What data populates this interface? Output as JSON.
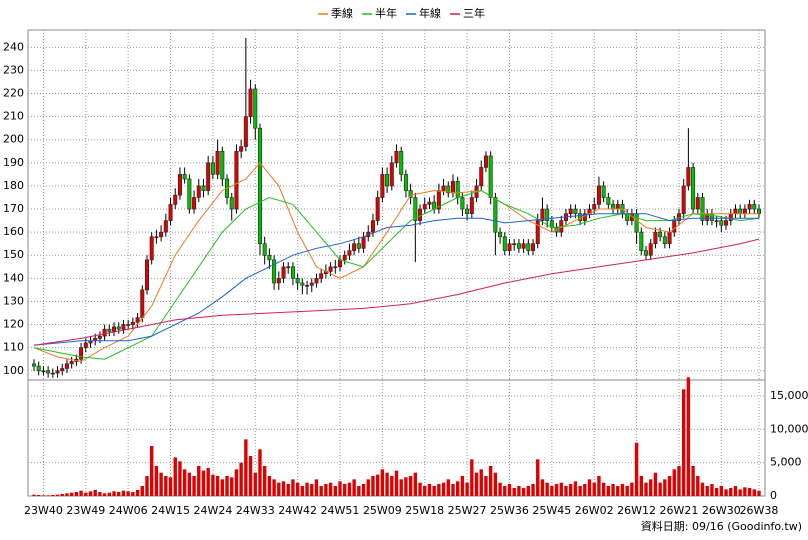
{
  "chart_data": {
    "type": "candlestick",
    "categories": [
      null,
      null,
      "23W40",
      null,
      null,
      null,
      null,
      null,
      null,
      null,
      null,
      "23W49",
      null,
      null,
      null,
      null,
      null,
      null,
      null,
      null,
      "24W06",
      null,
      null,
      null,
      null,
      null,
      null,
      null,
      null,
      "24W15",
      null,
      null,
      null,
      null,
      null,
      null,
      null,
      null,
      "24W24",
      null,
      null,
      null,
      null,
      null,
      null,
      null,
      null,
      "24W33",
      null,
      null,
      null,
      null,
      null,
      null,
      null,
      null,
      "24W42",
      null,
      null,
      null,
      null,
      null,
      null,
      null,
      null,
      "24W51",
      null,
      null,
      null,
      null,
      null,
      null,
      null,
      null,
      "25W09",
      null,
      null,
      null,
      null,
      null,
      null,
      null,
      null,
      "25W18",
      null,
      null,
      null,
      null,
      null,
      null,
      null,
      null,
      "25W27",
      null,
      null,
      null,
      null,
      null,
      null,
      null,
      null,
      "25W36",
      null,
      null,
      null,
      null,
      null,
      null,
      null,
      null,
      "25W45",
      null,
      null,
      null,
      null,
      null,
      null,
      null,
      null,
      "26W02",
      null,
      null,
      null,
      null,
      null,
      null,
      null,
      null,
      "26W12",
      null,
      null,
      null,
      null,
      null,
      null,
      null,
      null,
      "26W21",
      null,
      null,
      null,
      null,
      null,
      null,
      null,
      null,
      "26W30",
      null,
      null,
      null,
      null,
      null,
      null,
      null,
      "26W38"
    ],
    "open": [
      103,
      102,
      100,
      100,
      99,
      99,
      100,
      101,
      103,
      104,
      105,
      110,
      112,
      113,
      114,
      115,
      118,
      117,
      119,
      118,
      120,
      120,
      121,
      123,
      135,
      148,
      158,
      158,
      160,
      165,
      172,
      176,
      185,
      183,
      170,
      175,
      180,
      178,
      190,
      185,
      195,
      183,
      175,
      170,
      195,
      197,
      210,
      222,
      205,
      155,
      150,
      148,
      138,
      140,
      145,
      145,
      140,
      138,
      137,
      137,
      138,
      140,
      142,
      143,
      145,
      145,
      148,
      150,
      152,
      155,
      153,
      158,
      160,
      165,
      175,
      185,
      180,
      190,
      195,
      185,
      178,
      175,
      165,
      170,
      172,
      173,
      170,
      178,
      180,
      177,
      182,
      175,
      170,
      168,
      175,
      180,
      188,
      193,
      175,
      160,
      158,
      152,
      155,
      155,
      153,
      155,
      152,
      155,
      165,
      170,
      165,
      162,
      160,
      165,
      168,
      170,
      168,
      165,
      168,
      170,
      172,
      180,
      175,
      172,
      170,
      172,
      168,
      165,
      168,
      160,
      152,
      150,
      155,
      160,
      158,
      155,
      160,
      165,
      168,
      180,
      188,
      170,
      175,
      165,
      168,
      165,
      165,
      163,
      165,
      168,
      170,
      168,
      170,
      172,
      170
    ],
    "high": [
      105,
      104,
      102,
      102,
      101,
      102,
      103,
      105,
      106,
      107,
      112,
      114,
      115,
      116,
      117,
      120,
      120,
      121,
      121,
      122,
      122,
      123,
      125,
      137,
      150,
      160,
      161,
      163,
      168,
      175,
      179,
      188,
      188,
      185,
      178,
      183,
      183,
      193,
      193,
      200,
      197,
      185,
      177,
      198,
      200,
      244,
      226,
      224,
      207,
      158,
      153,
      150,
      143,
      147,
      147,
      147,
      142,
      140,
      139,
      140,
      142,
      144,
      146,
      147,
      148,
      150,
      152,
      155,
      157,
      158,
      160,
      163,
      168,
      178,
      188,
      188,
      193,
      198,
      197,
      187,
      181,
      177,
      172,
      175,
      175,
      176,
      181,
      183,
      182,
      185,
      184,
      177,
      172,
      178,
      183,
      191,
      195,
      195,
      177,
      162,
      160,
      157,
      157,
      157,
      157,
      157,
      157,
      168,
      175,
      172,
      167,
      164,
      167,
      170,
      172,
      172,
      170,
      170,
      172,
      175,
      184,
      182,
      177,
      174,
      174,
      174,
      170,
      170,
      170,
      162,
      154,
      157,
      162,
      162,
      160,
      162,
      167,
      170,
      183,
      205,
      190,
      177,
      177,
      170,
      170,
      167,
      167,
      167,
      170,
      172,
      172,
      172,
      174,
      174,
      172
    ],
    "low": [
      100,
      98,
      98,
      97,
      97,
      97,
      98,
      99,
      101,
      102,
      103,
      108,
      110,
      111,
      112,
      113,
      115,
      115,
      116,
      116,
      118,
      118,
      119,
      121,
      133,
      146,
      155,
      156,
      158,
      163,
      170,
      174,
      181,
      168,
      168,
      173,
      175,
      176,
      183,
      183,
      180,
      172,
      165,
      168,
      192,
      195,
      207,
      200,
      150,
      146,
      144,
      135,
      135,
      138,
      142,
      137,
      135,
      133,
      133,
      134,
      136,
      138,
      140,
      141,
      142,
      143,
      146,
      148,
      150,
      151,
      151,
      156,
      158,
      163,
      173,
      177,
      178,
      188,
      182,
      175,
      172,
      147,
      163,
      168,
      170,
      168,
      168,
      176,
      175,
      175,
      172,
      167,
      165,
      166,
      173,
      178,
      186,
      172,
      150,
      155,
      150,
      150,
      152,
      151,
      151,
      150,
      150,
      153,
      163,
      162,
      160,
      158,
      158,
      163,
      166,
      166,
      163,
      163,
      166,
      168,
      170,
      173,
      170,
      168,
      168,
      166,
      163,
      163,
      155,
      150,
      148,
      148,
      153,
      156,
      153,
      153,
      158,
      163,
      166,
      178,
      168,
      168,
      163,
      163,
      163,
      162,
      160,
      161,
      163,
      166,
      166,
      166,
      168,
      168,
      166
    ],
    "close": [
      102,
      100,
      100,
      99,
      99,
      100,
      101,
      103,
      104,
      105,
      110,
      112,
      113,
      114,
      115,
      118,
      117,
      119,
      118,
      120,
      120,
      121,
      123,
      135,
      148,
      158,
      158,
      160,
      165,
      172,
      176,
      185,
      183,
      170,
      175,
      180,
      178,
      190,
      185,
      195,
      183,
      175,
      170,
      195,
      197,
      210,
      222,
      205,
      155,
      150,
      148,
      138,
      140,
      145,
      145,
      140,
      138,
      137,
      137,
      138,
      140,
      142,
      143,
      145,
      145,
      148,
      150,
      152,
      155,
      153,
      158,
      160,
      165,
      175,
      185,
      180,
      190,
      195,
      185,
      178,
      175,
      165,
      170,
      172,
      173,
      170,
      178,
      180,
      177,
      182,
      175,
      170,
      168,
      175,
      180,
      188,
      193,
      175,
      160,
      158,
      152,
      155,
      155,
      153,
      155,
      152,
      155,
      165,
      170,
      165,
      162,
      160,
      165,
      168,
      170,
      168,
      165,
      168,
      170,
      172,
      180,
      175,
      172,
      170,
      172,
      168,
      165,
      168,
      160,
      152,
      150,
      155,
      160,
      158,
      155,
      160,
      165,
      168,
      180,
      188,
      170,
      175,
      165,
      168,
      165,
      165,
      163,
      165,
      168,
      170,
      168,
      170,
      172,
      170,
      168
    ],
    "up_color": "#e00000",
    "down_color": "#00c000",
    "ylim": [
      96,
      247.5
    ],
    "yticks": [
      100,
      110,
      120,
      130,
      140,
      150,
      160,
      170,
      180,
      190,
      200,
      210,
      220,
      230,
      240
    ],
    "grid": true,
    "series": [
      {
        "name": "季線",
        "color": "#f07820",
        "x": [
          0,
          5,
          10,
          15,
          20,
          25,
          30,
          35,
          40,
          45,
          48,
          52,
          56,
          60,
          65,
          70,
          75,
          80,
          85,
          90,
          95,
          100,
          105,
          110,
          115,
          120,
          125,
          130,
          135,
          140,
          145,
          150,
          154
        ],
        "values": [
          110,
          106,
          104,
          110,
          115,
          128,
          150,
          165,
          178,
          183,
          190,
          180,
          160,
          145,
          140,
          145,
          160,
          176,
          178,
          177,
          178,
          172,
          165,
          160,
          165,
          170,
          170,
          162,
          160,
          168,
          168,
          168,
          168
        ]
      },
      {
        "name": "半年",
        "color": "#20c020",
        "x": [
          0,
          10,
          15,
          20,
          25,
          30,
          35,
          40,
          45,
          50,
          55,
          60,
          65,
          70,
          75,
          80,
          85,
          90,
          95,
          100,
          105,
          110,
          115,
          120,
          125,
          130,
          135,
          140,
          145,
          150,
          154
        ],
        "values": [
          110,
          106,
          105,
          110,
          115,
          130,
          145,
          160,
          170,
          175,
          172,
          160,
          148,
          145,
          155,
          165,
          170,
          175,
          178,
          172,
          168,
          162,
          163,
          166,
          168,
          165,
          165,
          168,
          167,
          165,
          166
        ]
      },
      {
        "name": "年線",
        "color": "#2060d0",
        "x": [
          0,
          10,
          20,
          25,
          30,
          35,
          40,
          45,
          50,
          55,
          60,
          65,
          70,
          75,
          80,
          85,
          90,
          95,
          100,
          105,
          110,
          115,
          120,
          125,
          130,
          135,
          140,
          145,
          150,
          154
        ],
        "values": [
          111,
          113,
          113,
          115,
          120,
          125,
          132,
          140,
          145,
          150,
          153,
          155,
          158,
          162,
          163,
          165,
          166,
          166,
          164,
          165,
          166,
          167,
          168,
          168,
          168,
          165,
          166,
          166,
          166,
          166
        ]
      },
      {
        "name": "三年",
        "color": "#d02060",
        "x": [
          0,
          10,
          20,
          30,
          40,
          50,
          60,
          70,
          80,
          90,
          100,
          110,
          120,
          130,
          140,
          150,
          154
        ],
        "values": [
          111,
          114,
          118,
          122,
          124,
          125,
          126,
          127,
          129,
          133,
          138,
          142,
          145,
          148,
          151,
          155,
          157
        ]
      }
    ],
    "volume": {
      "color": "#e00000",
      "values": [
        200,
        150,
        100,
        100,
        150,
        200,
        300,
        400,
        500,
        600,
        800,
        500,
        700,
        900,
        600,
        400,
        500,
        700,
        600,
        800,
        700,
        600,
        900,
        1500,
        3000,
        7500,
        4500,
        3500,
        3000,
        2800,
        5800,
        5200,
        4000,
        3500,
        3000,
        4500,
        3800,
        4200,
        3200,
        3000,
        2500,
        3000,
        2800,
        4000,
        5000,
        8500,
        6000,
        3500,
        7000,
        4500,
        3000,
        2500,
        2000,
        2200,
        1800,
        2500,
        2000,
        1500,
        2000,
        1800,
        2500,
        1500,
        1800,
        2000,
        1500,
        2200,
        1800,
        2000,
        2500,
        1500,
        1800,
        2500,
        3000,
        3200,
        4000,
        3500,
        3000,
        3800,
        2500,
        2800,
        3000,
        3500,
        2000,
        1500,
        1800,
        1500,
        1800,
        2000,
        2500,
        1800,
        2200,
        3000,
        2000,
        5500,
        3500,
        4000,
        3000,
        4500,
        3500,
        2000,
        1500,
        1800,
        1200,
        1500,
        1200,
        1500,
        1800,
        5500,
        2500,
        2000,
        1500,
        1800,
        2000,
        1500,
        1800,
        2200,
        1500,
        1800,
        2500,
        2000,
        3000,
        2000,
        1500,
        1800,
        1500,
        1800,
        1500,
        2000,
        8000,
        3000,
        2000,
        2500,
        3500,
        2000,
        2500,
        3000,
        4000,
        4500,
        16000,
        17800,
        4500,
        3000,
        2000,
        1500,
        1800,
        1200,
        1500,
        1000,
        1200,
        1500,
        1000,
        1300,
        1200,
        1000,
        800
      ],
      "ylim": [
        0,
        17400
      ],
      "yticks": [
        0,
        {
          "value": 5000,
          "label": "5,000"
        },
        {
          "value": 10000,
          "label": "10,000"
        },
        {
          "value": 15000,
          "label": "15,000"
        }
      ]
    },
    "footer": "資料日期: 09/16 (Goodinfo.tw)"
  }
}
